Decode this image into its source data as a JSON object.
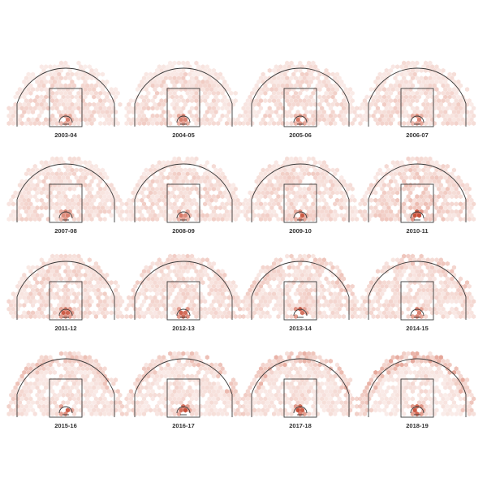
{
  "colors": {
    "low": "#f6dcd6",
    "mid": "#e39a8a",
    "high": "#c23b22",
    "court": "#3a3a3a",
    "label": "#333333"
  },
  "chart_data": {
    "type": "heatmap",
    "subtype": "hexbin shot charts (small multiples)",
    "title": "",
    "seasons": [
      {
        "label": "2003-04",
        "hotspots": [
          {
            "zone": "rim",
            "intensity": 0.6
          },
          {
            "zone": "paint",
            "intensity": 0.25
          },
          {
            "zone": "midrange",
            "intensity": 0.3
          },
          {
            "zone": "corner-three",
            "intensity": 0.2
          },
          {
            "zone": "above-break-three",
            "intensity": 0.15
          }
        ]
      },
      {
        "label": "2004-05",
        "hotspots": [
          {
            "zone": "rim",
            "intensity": 0.65
          },
          {
            "zone": "paint",
            "intensity": 0.25
          },
          {
            "zone": "midrange",
            "intensity": 0.3
          },
          {
            "zone": "corner-three",
            "intensity": 0.2
          },
          {
            "zone": "above-break-three",
            "intensity": 0.15
          }
        ]
      },
      {
        "label": "2005-06",
        "hotspots": [
          {
            "zone": "rim",
            "intensity": 0.65
          },
          {
            "zone": "paint",
            "intensity": 0.25
          },
          {
            "zone": "midrange",
            "intensity": 0.3
          },
          {
            "zone": "corner-three",
            "intensity": 0.2
          },
          {
            "zone": "above-break-three",
            "intensity": 0.2
          }
        ]
      },
      {
        "label": "2006-07",
        "hotspots": [
          {
            "zone": "rim",
            "intensity": 0.65
          },
          {
            "zone": "paint",
            "intensity": 0.25
          },
          {
            "zone": "midrange",
            "intensity": 0.3
          },
          {
            "zone": "corner-three",
            "intensity": 0.2
          },
          {
            "zone": "above-break-three",
            "intensity": 0.2
          }
        ]
      },
      {
        "label": "2007-08",
        "hotspots": [
          {
            "zone": "rim",
            "intensity": 0.7
          },
          {
            "zone": "paint",
            "intensity": 0.25
          },
          {
            "zone": "midrange",
            "intensity": 0.3
          },
          {
            "zone": "corner-three",
            "intensity": 0.2
          },
          {
            "zone": "above-break-three",
            "intensity": 0.2
          }
        ]
      },
      {
        "label": "2008-09",
        "hotspots": [
          {
            "zone": "rim",
            "intensity": 0.65
          },
          {
            "zone": "paint",
            "intensity": 0.25
          },
          {
            "zone": "midrange",
            "intensity": 0.3
          },
          {
            "zone": "corner-three",
            "intensity": 0.2
          },
          {
            "zone": "above-break-three",
            "intensity": 0.2
          }
        ]
      },
      {
        "label": "2009-10",
        "hotspots": [
          {
            "zone": "rim",
            "intensity": 0.75
          },
          {
            "zone": "paint",
            "intensity": 0.3
          },
          {
            "zone": "midrange",
            "intensity": 0.3
          },
          {
            "zone": "corner-three",
            "intensity": 0.2
          },
          {
            "zone": "above-break-three",
            "intensity": 0.2
          }
        ]
      },
      {
        "label": "2010-11",
        "hotspots": [
          {
            "zone": "rim",
            "intensity": 0.95
          },
          {
            "zone": "paint",
            "intensity": 0.4
          },
          {
            "zone": "midrange",
            "intensity": 0.35
          },
          {
            "zone": "corner-three",
            "intensity": 0.25
          },
          {
            "zone": "above-break-three",
            "intensity": 0.25
          }
        ]
      },
      {
        "label": "2011-12",
        "hotspots": [
          {
            "zone": "rim",
            "intensity": 0.85
          },
          {
            "zone": "paint",
            "intensity": 0.3
          },
          {
            "zone": "midrange",
            "intensity": 0.3
          },
          {
            "zone": "corner-three",
            "intensity": 0.25
          },
          {
            "zone": "above-break-three",
            "intensity": 0.25
          }
        ]
      },
      {
        "label": "2012-13",
        "hotspots": [
          {
            "zone": "rim",
            "intensity": 0.85
          },
          {
            "zone": "paint",
            "intensity": 0.3
          },
          {
            "zone": "midrange",
            "intensity": 0.25
          },
          {
            "zone": "corner-three",
            "intensity": 0.3
          },
          {
            "zone": "above-break-three",
            "intensity": 0.3
          }
        ]
      },
      {
        "label": "2013-14",
        "hotspots": [
          {
            "zone": "rim",
            "intensity": 0.85
          },
          {
            "zone": "paint",
            "intensity": 0.3
          },
          {
            "zone": "midrange",
            "intensity": 0.25
          },
          {
            "zone": "corner-three",
            "intensity": 0.3
          },
          {
            "zone": "above-break-three",
            "intensity": 0.35
          }
        ]
      },
      {
        "label": "2014-15",
        "hotspots": [
          {
            "zone": "rim",
            "intensity": 0.75
          },
          {
            "zone": "paint",
            "intensity": 0.25
          },
          {
            "zone": "midrange",
            "intensity": 0.25
          },
          {
            "zone": "corner-three",
            "intensity": 0.3
          },
          {
            "zone": "above-break-three",
            "intensity": 0.35
          }
        ]
      },
      {
        "label": "2015-16",
        "hotspots": [
          {
            "zone": "rim",
            "intensity": 0.85
          },
          {
            "zone": "paint",
            "intensity": 0.25
          },
          {
            "zone": "midrange",
            "intensity": 0.2
          },
          {
            "zone": "corner-three",
            "intensity": 0.3
          },
          {
            "zone": "above-break-three",
            "intensity": 0.4
          }
        ]
      },
      {
        "label": "2016-17",
        "hotspots": [
          {
            "zone": "rim",
            "intensity": 0.85
          },
          {
            "zone": "paint",
            "intensity": 0.25
          },
          {
            "zone": "midrange",
            "intensity": 0.2
          },
          {
            "zone": "corner-three",
            "intensity": 0.3
          },
          {
            "zone": "above-break-three",
            "intensity": 0.4
          }
        ]
      },
      {
        "label": "2017-18",
        "hotspots": [
          {
            "zone": "rim",
            "intensity": 0.9
          },
          {
            "zone": "paint",
            "intensity": 0.25
          },
          {
            "zone": "midrange",
            "intensity": 0.2
          },
          {
            "zone": "corner-three",
            "intensity": 0.3
          },
          {
            "zone": "above-break-three",
            "intensity": 0.45
          }
        ]
      },
      {
        "label": "2018-19",
        "hotspots": [
          {
            "zone": "rim",
            "intensity": 0.9
          },
          {
            "zone": "paint",
            "intensity": 0.25
          },
          {
            "zone": "midrange",
            "intensity": 0.15
          },
          {
            "zone": "corner-three",
            "intensity": 0.35
          },
          {
            "zone": "above-break-three",
            "intensity": 0.5
          }
        ]
      }
    ]
  }
}
